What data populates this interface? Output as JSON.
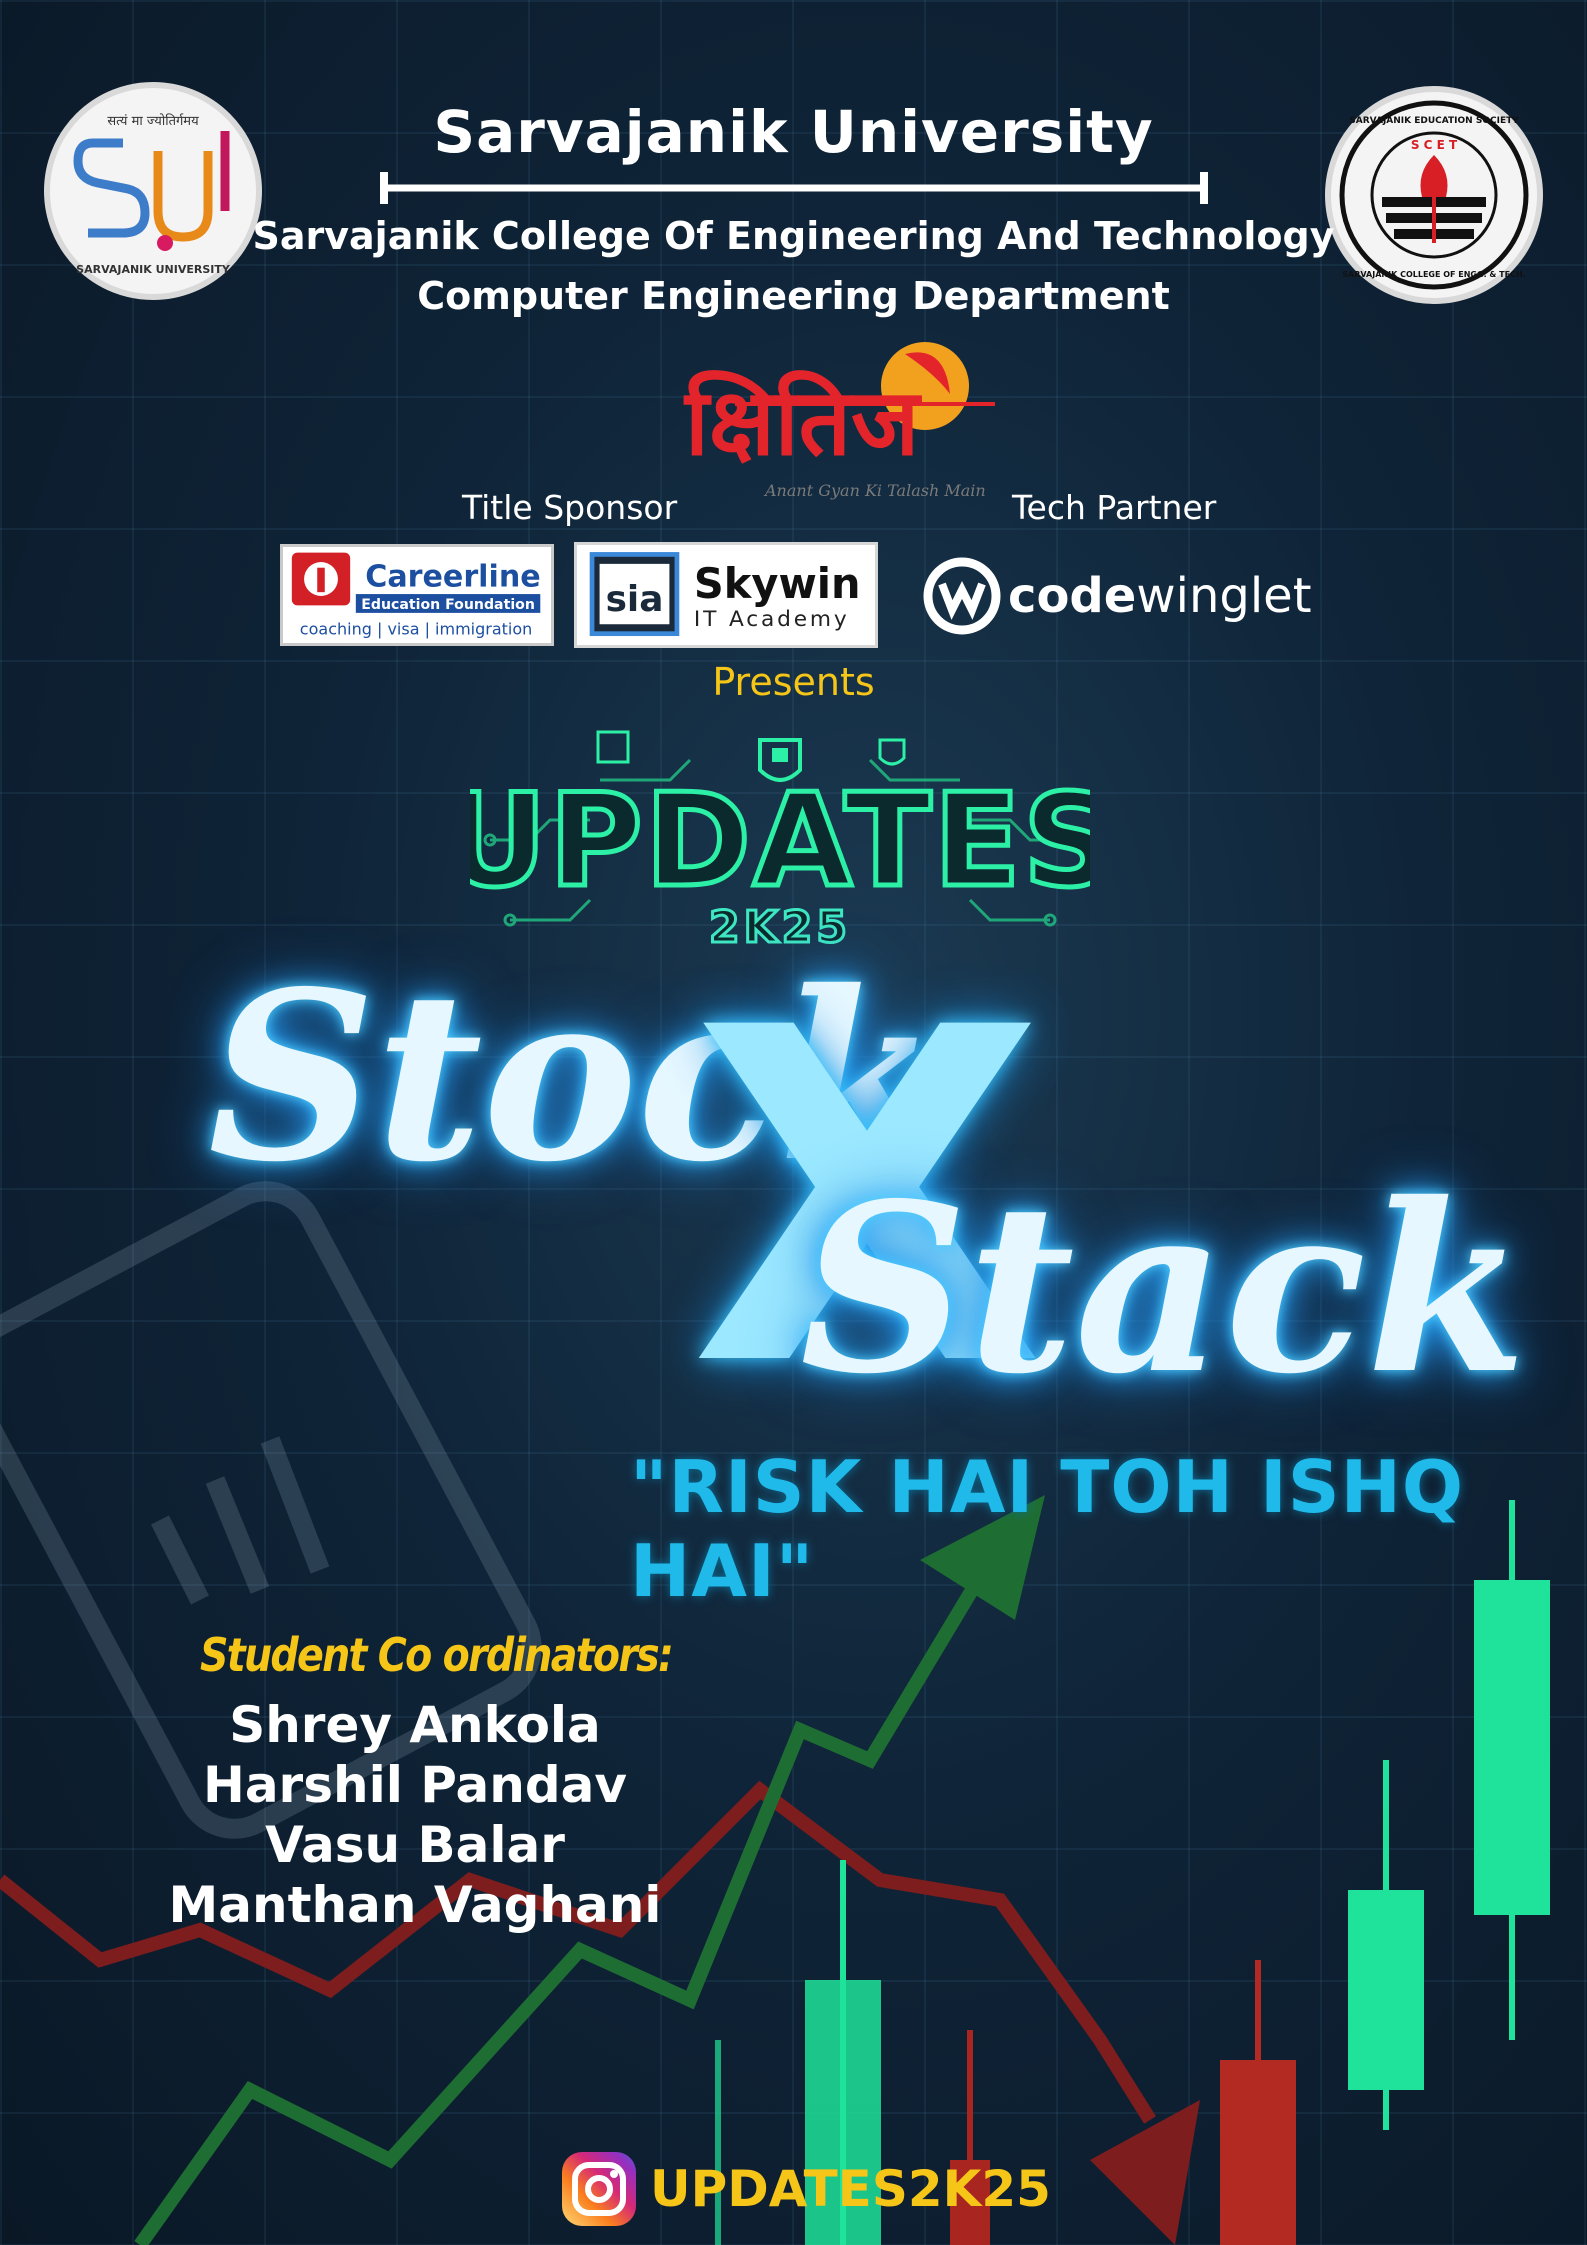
{
  "header": {
    "university": "Sarvajanik University",
    "college": "Sarvajanik College Of Engineering And Technology",
    "department": "Computer Engineering Department"
  },
  "logos": {
    "su_logo": {
      "icon": "su-university-seal-icon",
      "ring_text": "SARVAJANIK UNIVERSITY",
      "top_text": "सत्यं मा ज्योतिर्गमय"
    },
    "scet_logo": {
      "icon": "scet-seal-icon",
      "ring_top": "SARVAJANIK EDUCATION SOCIETY",
      "ring_bottom": "SARVAJANIK COLLEGE OF ENGG. & TECH.",
      "letters": "S C E T"
    },
    "kshitij": {
      "name": "क्षितिज",
      "tagline": "Anant Gyan Ki Talash Main"
    }
  },
  "sponsors": {
    "title_sponsor_label": "Title Sponsor",
    "tech_partner_label": "Tech Partner",
    "careerline": {
      "name": "Careerline",
      "sub": "Education Foundation",
      "services": "coaching  |  visa  |  immigration"
    },
    "skywin": {
      "badge": "sia",
      "name": "Skywin",
      "sub": "IT Academy"
    },
    "codewinglet": {
      "name_bold": "code",
      "name_light": "winglet"
    }
  },
  "presents": "Presents",
  "event": {
    "fest_name": "UPDATES",
    "fest_year": "2K25",
    "word_one": "Stock",
    "x": "X",
    "word_two": "Stack",
    "tagline": "\"RISK HAI TOH ISHQ HAI\""
  },
  "coordinators": {
    "heading": "Student Co ordinators:",
    "names": [
      "Shrey Ankola",
      "Harshil Pandav",
      "Vasu Balar",
      "Manthan Vaghani"
    ]
  },
  "social": {
    "icon": "instagram-icon",
    "handle": "UPDATES2K25"
  },
  "colors": {
    "accent_yellow": "#f5c518",
    "neon_green": "#2bf0a6",
    "neon_blue": "#4fd1ff",
    "candle_green": "#1fe39a",
    "candle_red": "#a8261f"
  }
}
